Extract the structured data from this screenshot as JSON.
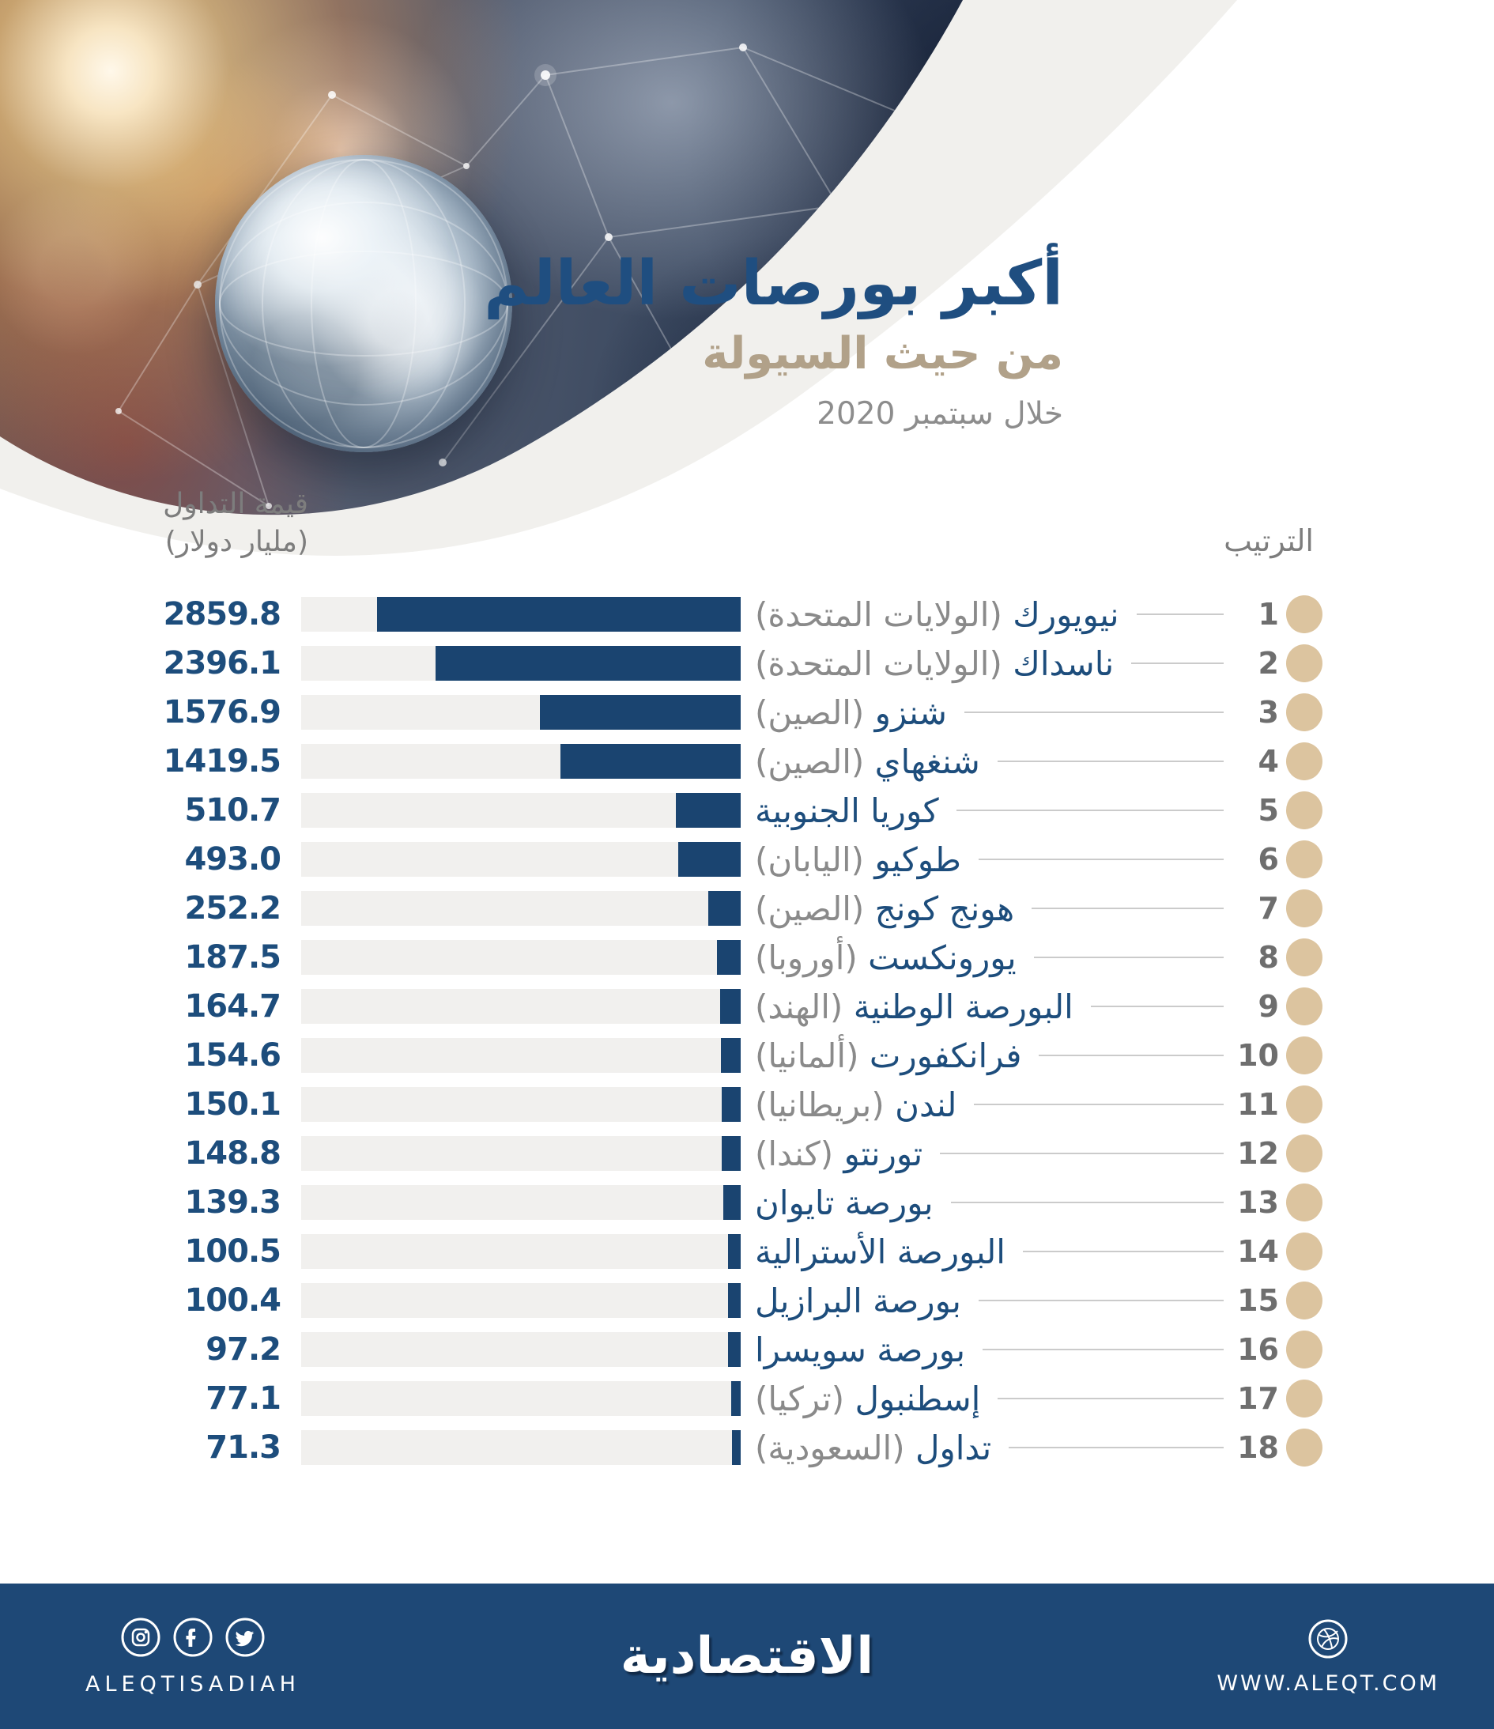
{
  "header": {
    "title": "أكبر بورصات العالم",
    "subtitle": "من حيث السيولة",
    "period": "خلال سبتمبر 2020"
  },
  "chart": {
    "value_header_line1": "قيمة التداول",
    "value_header_line2": "(مليار دولار)",
    "rank_header": "الترتيب"
  },
  "chart_data": {
    "type": "bar",
    "orientation": "horizontal-rtl",
    "title": "أكبر بورصات العالم",
    "subtitle": "من حيث السيولة",
    "period": "خلال سبتمبر 2020",
    "value_axis_label": "قيمة التداول (مليار دولار)",
    "rank_axis_label": "الترتيب",
    "unit": "مليار دولار",
    "max_scale": 3455,
    "bar_color": "#1a4470",
    "track_color": "#f1f0ee",
    "rows": [
      {
        "rank": 1,
        "exchange": "نيويورك",
        "country": "الولايات المتحدة",
        "value": 2859.8,
        "value_text": "2859.8"
      },
      {
        "rank": 2,
        "exchange": "ناسداك",
        "country": "الولايات المتحدة",
        "value": 2396.1,
        "value_text": "2396.1"
      },
      {
        "rank": 3,
        "exchange": "شنزو",
        "country": "الصين",
        "value": 1576.9,
        "value_text": "1576.9"
      },
      {
        "rank": 4,
        "exchange": "شنغهاي",
        "country": "الصين",
        "value": 1419.5,
        "value_text": "1419.5"
      },
      {
        "rank": 5,
        "exchange": "كوريا الجنوبية",
        "country": "",
        "value": 510.7,
        "value_text": "510.7"
      },
      {
        "rank": 6,
        "exchange": "طوكيو",
        "country": "اليابان",
        "value": 493.0,
        "value_text": "493.0"
      },
      {
        "rank": 7,
        "exchange": "هونج كونج",
        "country": "الصين",
        "value": 252.2,
        "value_text": "252.2"
      },
      {
        "rank": 8,
        "exchange": "يورونكست",
        "country": "أوروبا",
        "value": 187.5,
        "value_text": "187.5"
      },
      {
        "rank": 9,
        "exchange": "البورصة الوطنية",
        "country": "الهند",
        "value": 164.7,
        "value_text": "164.7"
      },
      {
        "rank": 10,
        "exchange": "فرانكفورت",
        "country": "ألمانيا",
        "value": 154.6,
        "value_text": "154.6"
      },
      {
        "rank": 11,
        "exchange": "لندن",
        "country": "بريطانيا",
        "value": 150.1,
        "value_text": "150.1"
      },
      {
        "rank": 12,
        "exchange": "تورنتو",
        "country": "كندا",
        "value": 148.8,
        "value_text": "148.8"
      },
      {
        "rank": 13,
        "exchange": "بورصة تايوان",
        "country": "",
        "value": 139.3,
        "value_text": "139.3"
      },
      {
        "rank": 14,
        "exchange": "البورصة الأسترالية",
        "country": "",
        "value": 100.5,
        "value_text": "100.5"
      },
      {
        "rank": 15,
        "exchange": "بورصة البرازيل",
        "country": "",
        "value": 100.4,
        "value_text": "100.4"
      },
      {
        "rank": 16,
        "exchange": "بورصة سويسرا",
        "country": "",
        "value": 97.2,
        "value_text": "97.2"
      },
      {
        "rank": 17,
        "exchange": "إسطنبول",
        "country": "تركيا",
        "value": 77.1,
        "value_text": "77.1"
      },
      {
        "rank": 18,
        "exchange": "تداول",
        "country": "السعودية",
        "value": 71.3,
        "value_text": "71.3"
      }
    ]
  },
  "footer": {
    "logo": "الاقتصادية",
    "handle": "ALEQTISADIAH",
    "website": "WWW.ALEQT.COM",
    "icons": [
      "instagram-icon",
      "facebook-icon",
      "twitter-icon",
      "dribbble-icon"
    ]
  },
  "colors": {
    "title_navy": "#1f4e80",
    "subtitle_tan": "#b1a189",
    "text_gray": "#7d7d7d",
    "bar_navy": "#1a4470",
    "track_gray": "#f1f0ee",
    "rank_dot_gold": "#dcc49f",
    "connector_gray": "#cbcbcb",
    "footer_navy": "#1e4876"
  }
}
